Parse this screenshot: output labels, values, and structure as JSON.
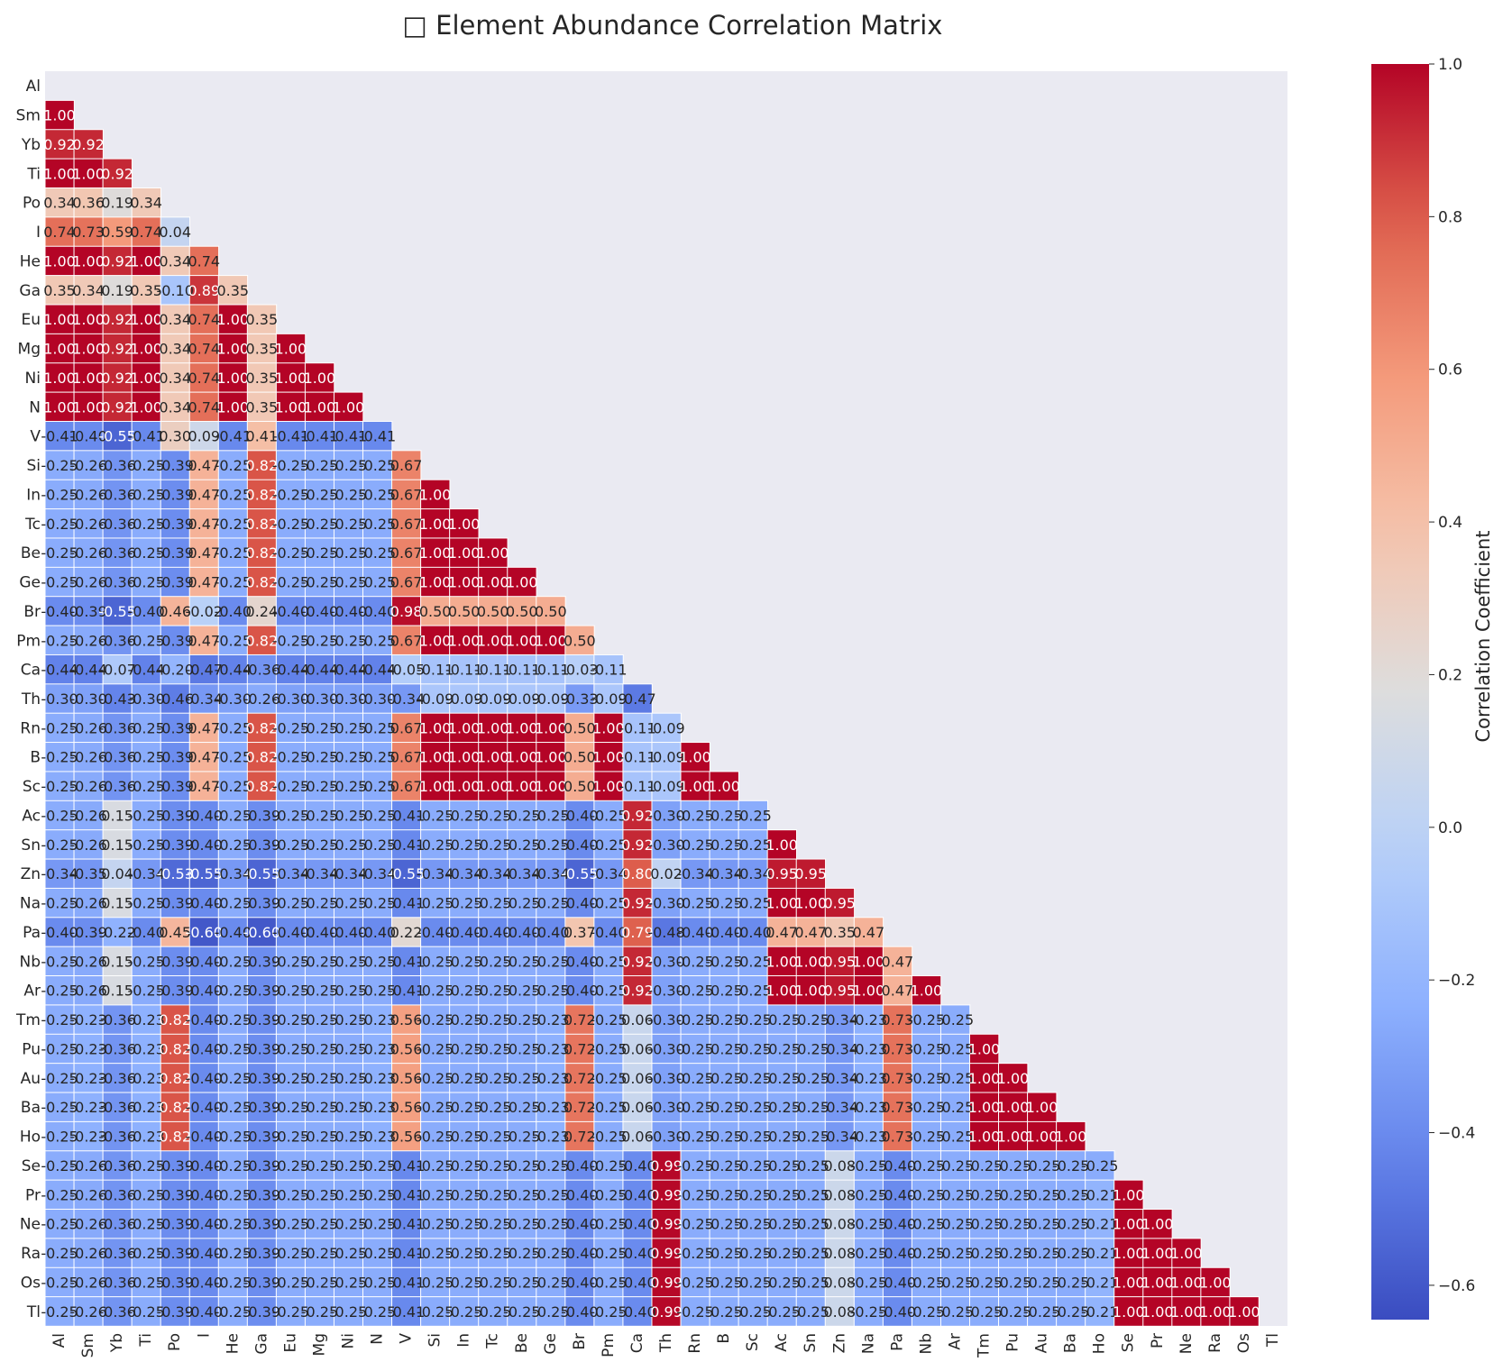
{
  "chart_data": {
    "type": "heatmap",
    "title": "□ Element Abundance Correlation Matrix",
    "colorbar_label": "Correlation Coefficient",
    "colorbar_ticks": [
      "1.0",
      "0.8",
      "0.6",
      "0.4",
      "0.2",
      "0.0",
      "−0.2",
      "−0.4",
      "−0.6"
    ],
    "colorbar_range": [
      -0.645,
      1.0
    ],
    "colormap": "coolwarm",
    "mask": "upper triangle including diagonal",
    "grid": true,
    "labels": [
      "Al",
      "Sm",
      "Yb",
      "Ti",
      "Po",
      "I",
      "He",
      "Ga",
      "Eu",
      "Mg",
      "Ni",
      "N",
      "V",
      "Si",
      "In",
      "Tc",
      "Be",
      "Ge",
      "Br",
      "Pm",
      "Ca",
      "Th",
      "Rn",
      "B",
      "Sc",
      "Ac",
      "Sn",
      "Zn",
      "Na",
      "Pa",
      "Nb",
      "Ar",
      "Tm",
      "Pu",
      "Au",
      "Ba",
      "Ho",
      "Se",
      "Pr",
      "Ne",
      "Ra",
      "Os",
      "Tl"
    ],
    "values": [
      [],
      [
        1.0
      ],
      [
        0.92,
        0.92
      ],
      [
        1.0,
        1.0,
        0.92
      ],
      [
        0.34,
        0.36,
        0.19,
        0.34
      ],
      [
        0.74,
        0.73,
        0.59,
        0.74,
        0.04
      ],
      [
        1.0,
        1.0,
        0.92,
        1.0,
        0.34,
        0.74
      ],
      [
        0.35,
        0.34,
        0.19,
        0.35,
        -0.1,
        0.89,
        0.35
      ],
      [
        1.0,
        1.0,
        0.92,
        1.0,
        0.34,
        0.74,
        1.0,
        0.35
      ],
      [
        1.0,
        1.0,
        0.92,
        1.0,
        0.34,
        0.74,
        1.0,
        0.35,
        1.0
      ],
      [
        1.0,
        1.0,
        0.92,
        1.0,
        0.34,
        0.74,
        1.0,
        0.35,
        1.0,
        1.0
      ],
      [
        1.0,
        1.0,
        0.92,
        1.0,
        0.34,
        0.74,
        1.0,
        0.35,
        1.0,
        1.0,
        1.0
      ],
      [
        -0.41,
        -0.4,
        -0.55,
        -0.41,
        0.3,
        0.09,
        -0.41,
        0.41,
        -0.41,
        -0.41,
        -0.41,
        -0.41
      ],
      [
        -0.25,
        -0.26,
        -0.36,
        -0.25,
        -0.39,
        0.47,
        -0.25,
        0.82,
        -0.25,
        -0.25,
        -0.25,
        -0.25,
        0.67
      ],
      [
        -0.25,
        -0.26,
        -0.36,
        -0.25,
        -0.39,
        0.47,
        -0.25,
        0.82,
        -0.25,
        -0.25,
        -0.25,
        -0.25,
        0.67,
        1.0
      ],
      [
        -0.25,
        -0.26,
        -0.36,
        -0.25,
        -0.39,
        0.47,
        -0.25,
        0.82,
        -0.25,
        -0.25,
        -0.25,
        -0.25,
        0.67,
        1.0,
        1.0
      ],
      [
        -0.25,
        -0.26,
        -0.36,
        -0.25,
        -0.39,
        0.47,
        -0.25,
        0.82,
        -0.25,
        -0.25,
        -0.25,
        -0.25,
        0.67,
        1.0,
        1.0,
        1.0
      ],
      [
        -0.25,
        -0.26,
        -0.36,
        -0.25,
        -0.39,
        0.47,
        -0.25,
        0.82,
        -0.25,
        -0.25,
        -0.25,
        -0.25,
        0.67,
        1.0,
        1.0,
        1.0,
        1.0
      ],
      [
        -0.4,
        -0.39,
        -0.55,
        -0.4,
        0.46,
        -0.02,
        -0.4,
        0.24,
        -0.4,
        -0.4,
        -0.4,
        -0.4,
        0.98,
        0.5,
        0.5,
        0.5,
        0.5,
        0.5
      ],
      [
        -0.25,
        -0.26,
        -0.36,
        -0.25,
        -0.39,
        0.47,
        -0.25,
        0.82,
        -0.25,
        -0.25,
        -0.25,
        -0.25,
        0.67,
        1.0,
        1.0,
        1.0,
        1.0,
        1.0,
        0.5
      ],
      [
        -0.44,
        -0.44,
        -0.07,
        -0.44,
        -0.2,
        -0.47,
        -0.44,
        -0.36,
        -0.44,
        -0.44,
        -0.44,
        -0.44,
        -0.05,
        -0.11,
        -0.11,
        -0.11,
        -0.11,
        -0.11,
        -0.03,
        -0.11
      ],
      [
        -0.3,
        -0.3,
        -0.43,
        -0.3,
        -0.46,
        -0.34,
        -0.3,
        -0.26,
        -0.3,
        -0.3,
        -0.3,
        -0.3,
        -0.34,
        -0.09,
        -0.09,
        -0.09,
        -0.09,
        -0.09,
        -0.33,
        -0.09,
        -0.47
      ],
      [
        -0.25,
        -0.26,
        -0.36,
        -0.25,
        -0.39,
        0.47,
        -0.25,
        0.82,
        -0.25,
        -0.25,
        -0.25,
        -0.25,
        0.67,
        1.0,
        1.0,
        1.0,
        1.0,
        1.0,
        0.5,
        1.0,
        -0.11,
        -0.09
      ],
      [
        -0.25,
        -0.26,
        -0.36,
        -0.25,
        -0.39,
        0.47,
        -0.25,
        0.82,
        -0.25,
        -0.25,
        -0.25,
        -0.25,
        0.67,
        1.0,
        1.0,
        1.0,
        1.0,
        1.0,
        0.5,
        1.0,
        -0.11,
        -0.09,
        1.0
      ],
      [
        -0.25,
        -0.26,
        -0.36,
        -0.25,
        -0.39,
        0.47,
        -0.25,
        0.82,
        -0.25,
        -0.25,
        -0.25,
        -0.25,
        0.67,
        1.0,
        1.0,
        1.0,
        1.0,
        1.0,
        0.5,
        1.0,
        -0.11,
        -0.09,
        1.0,
        1.0
      ],
      [
        -0.25,
        -0.26,
        0.15,
        -0.25,
        -0.39,
        -0.4,
        -0.25,
        -0.39,
        -0.25,
        -0.25,
        -0.25,
        -0.25,
        -0.41,
        -0.25,
        -0.25,
        -0.25,
        -0.25,
        -0.25,
        -0.4,
        -0.25,
        0.92,
        -0.3,
        -0.25,
        -0.25,
        -0.25
      ],
      [
        -0.25,
        -0.26,
        0.15,
        -0.25,
        -0.39,
        -0.4,
        -0.25,
        -0.39,
        -0.25,
        -0.25,
        -0.25,
        -0.25,
        -0.41,
        -0.25,
        -0.25,
        -0.25,
        -0.25,
        -0.25,
        -0.4,
        -0.25,
        0.92,
        -0.3,
        -0.25,
        -0.25,
        -0.25,
        1.0
      ],
      [
        -0.34,
        -0.35,
        0.04,
        -0.34,
        -0.53,
        -0.55,
        -0.34,
        -0.55,
        -0.34,
        -0.34,
        -0.34,
        -0.34,
        -0.55,
        -0.34,
        -0.34,
        -0.34,
        -0.34,
        -0.34,
        -0.55,
        -0.34,
        0.8,
        0.02,
        -0.34,
        -0.34,
        -0.34,
        0.95,
        0.95
      ],
      [
        -0.25,
        -0.26,
        0.15,
        -0.25,
        -0.39,
        -0.4,
        -0.25,
        -0.39,
        -0.25,
        -0.25,
        -0.25,
        -0.25,
        -0.41,
        -0.25,
        -0.25,
        -0.25,
        -0.25,
        -0.25,
        -0.4,
        -0.25,
        0.92,
        -0.3,
        -0.25,
        -0.25,
        -0.25,
        1.0,
        1.0,
        0.95
      ],
      [
        -0.4,
        -0.39,
        -0.22,
        -0.4,
        0.45,
        -0.6,
        -0.4,
        -0.6,
        -0.4,
        -0.4,
        -0.4,
        -0.4,
        0.22,
        -0.4,
        -0.4,
        -0.4,
        -0.4,
        -0.4,
        0.37,
        -0.4,
        0.79,
        -0.48,
        -0.4,
        -0.4,
        -0.4,
        0.47,
        0.47,
        0.35,
        0.47
      ],
      [
        -0.25,
        -0.26,
        0.15,
        -0.25,
        -0.39,
        -0.4,
        -0.25,
        -0.39,
        -0.25,
        -0.25,
        -0.25,
        -0.25,
        -0.41,
        -0.25,
        -0.25,
        -0.25,
        -0.25,
        -0.25,
        -0.4,
        -0.25,
        0.92,
        -0.3,
        -0.25,
        -0.25,
        -0.25,
        1.0,
        1.0,
        0.95,
        1.0,
        0.47
      ],
      [
        -0.25,
        -0.26,
        0.15,
        -0.25,
        -0.39,
        -0.4,
        -0.25,
        -0.39,
        -0.25,
        -0.25,
        -0.25,
        -0.25,
        -0.41,
        -0.25,
        -0.25,
        -0.25,
        -0.25,
        -0.25,
        -0.4,
        -0.25,
        0.92,
        -0.3,
        -0.25,
        -0.25,
        -0.25,
        1.0,
        1.0,
        0.95,
        1.0,
        0.47,
        1.0
      ],
      [
        -0.25,
        -0.23,
        -0.36,
        -0.23,
        0.82,
        -0.4,
        -0.25,
        -0.39,
        -0.25,
        -0.25,
        -0.25,
        -0.23,
        0.56,
        -0.25,
        -0.25,
        -0.25,
        -0.25,
        -0.23,
        0.72,
        -0.25,
        0.06,
        -0.3,
        -0.25,
        -0.25,
        -0.25,
        -0.25,
        -0.25,
        -0.34,
        -0.23,
        0.73,
        -0.25,
        -0.25
      ],
      [
        -0.25,
        -0.23,
        -0.36,
        -0.23,
        0.82,
        -0.4,
        -0.25,
        -0.39,
        -0.25,
        -0.25,
        -0.25,
        -0.23,
        0.56,
        -0.25,
        -0.25,
        -0.25,
        -0.25,
        -0.23,
        0.72,
        -0.25,
        0.06,
        -0.3,
        -0.25,
        -0.25,
        -0.25,
        -0.25,
        -0.25,
        -0.34,
        -0.23,
        0.73,
        -0.25,
        -0.25,
        1.0
      ],
      [
        -0.25,
        -0.23,
        -0.36,
        -0.23,
        0.82,
        -0.4,
        -0.25,
        -0.39,
        -0.25,
        -0.25,
        -0.25,
        -0.23,
        0.56,
        -0.25,
        -0.25,
        -0.25,
        -0.25,
        -0.23,
        0.72,
        -0.25,
        0.06,
        -0.3,
        -0.25,
        -0.25,
        -0.25,
        -0.25,
        -0.25,
        -0.34,
        -0.23,
        0.73,
        -0.25,
        -0.25,
        1.0,
        1.0
      ],
      [
        -0.25,
        -0.23,
        -0.36,
        -0.23,
        0.82,
        -0.4,
        -0.25,
        -0.39,
        -0.25,
        -0.25,
        -0.25,
        -0.23,
        0.56,
        -0.25,
        -0.25,
        -0.25,
        -0.25,
        -0.23,
        0.72,
        -0.25,
        0.06,
        -0.3,
        -0.25,
        -0.25,
        -0.25,
        -0.25,
        -0.25,
        -0.34,
        -0.23,
        0.73,
        -0.25,
        -0.25,
        1.0,
        1.0,
        1.0
      ],
      [
        -0.25,
        -0.23,
        -0.36,
        -0.23,
        0.82,
        -0.4,
        -0.25,
        -0.39,
        -0.25,
        -0.25,
        -0.25,
        -0.23,
        0.56,
        -0.25,
        -0.25,
        -0.25,
        -0.25,
        -0.23,
        0.72,
        -0.25,
        0.06,
        -0.3,
        -0.25,
        -0.25,
        -0.25,
        -0.25,
        -0.25,
        -0.34,
        -0.23,
        0.73,
        -0.25,
        -0.25,
        1.0,
        1.0,
        1.0,
        1.0
      ],
      [
        -0.25,
        -0.26,
        -0.36,
        -0.25,
        -0.39,
        -0.4,
        -0.25,
        -0.39,
        -0.25,
        -0.25,
        -0.25,
        -0.25,
        -0.41,
        -0.25,
        -0.25,
        -0.25,
        -0.25,
        -0.25,
        -0.4,
        -0.25,
        -0.4,
        0.99,
        -0.25,
        -0.25,
        -0.25,
        -0.25,
        -0.25,
        0.08,
        -0.25,
        -0.4,
        -0.25,
        -0.25,
        -0.25,
        -0.25,
        -0.25,
        -0.25,
        -0.25
      ],
      [
        -0.25,
        -0.26,
        -0.36,
        -0.25,
        -0.39,
        -0.4,
        -0.25,
        -0.39,
        -0.25,
        -0.25,
        -0.25,
        -0.25,
        -0.41,
        -0.25,
        -0.25,
        -0.25,
        -0.25,
        -0.25,
        -0.4,
        -0.25,
        -0.4,
        0.99,
        -0.25,
        -0.25,
        -0.25,
        -0.25,
        -0.25,
        0.08,
        -0.25,
        -0.4,
        -0.25,
        -0.25,
        -0.25,
        -0.25,
        -0.25,
        -0.25,
        -0.21,
        1.0
      ],
      [
        -0.25,
        -0.26,
        -0.36,
        -0.25,
        -0.39,
        -0.4,
        -0.25,
        -0.39,
        -0.25,
        -0.25,
        -0.25,
        -0.25,
        -0.41,
        -0.25,
        -0.25,
        -0.25,
        -0.25,
        -0.25,
        -0.4,
        -0.25,
        -0.4,
        0.99,
        -0.25,
        -0.25,
        -0.25,
        -0.25,
        -0.25,
        0.08,
        -0.25,
        -0.4,
        -0.25,
        -0.25,
        -0.25,
        -0.25,
        -0.25,
        -0.25,
        -0.21,
        1.0,
        1.0
      ],
      [
        -0.25,
        -0.26,
        -0.36,
        -0.25,
        -0.39,
        -0.4,
        -0.25,
        -0.39,
        -0.25,
        -0.25,
        -0.25,
        -0.25,
        -0.41,
        -0.25,
        -0.25,
        -0.25,
        -0.25,
        -0.25,
        -0.4,
        -0.25,
        -0.4,
        0.99,
        -0.25,
        -0.25,
        -0.25,
        -0.25,
        -0.25,
        0.08,
        -0.25,
        -0.4,
        -0.25,
        -0.25,
        -0.25,
        -0.25,
        -0.25,
        -0.25,
        -0.21,
        1.0,
        1.0,
        1.0
      ],
      [
        -0.25,
        -0.26,
        -0.36,
        -0.25,
        -0.39,
        -0.4,
        -0.25,
        -0.39,
        -0.25,
        -0.25,
        -0.25,
        -0.25,
        -0.41,
        -0.25,
        -0.25,
        -0.25,
        -0.25,
        -0.25,
        -0.4,
        -0.25,
        -0.4,
        0.99,
        -0.25,
        -0.25,
        -0.25,
        -0.25,
        -0.25,
        0.08,
        -0.25,
        -0.4,
        -0.25,
        -0.25,
        -0.25,
        -0.25,
        -0.25,
        -0.25,
        -0.21,
        1.0,
        1.0,
        1.0,
        1.0
      ],
      [
        -0.25,
        -0.26,
        -0.36,
        -0.25,
        -0.39,
        -0.4,
        -0.25,
        -0.39,
        -0.25,
        -0.25,
        -0.25,
        -0.25,
        -0.41,
        -0.25,
        -0.25,
        -0.25,
        -0.25,
        -0.25,
        -0.4,
        -0.25,
        -0.4,
        0.99,
        -0.25,
        -0.25,
        -0.25,
        -0.25,
        -0.25,
        0.08,
        -0.25,
        -0.4,
        -0.25,
        -0.25,
        -0.25,
        -0.25,
        -0.25,
        -0.25,
        -0.21,
        1.0,
        1.0,
        1.0,
        1.0,
        1.0
      ]
    ]
  }
}
